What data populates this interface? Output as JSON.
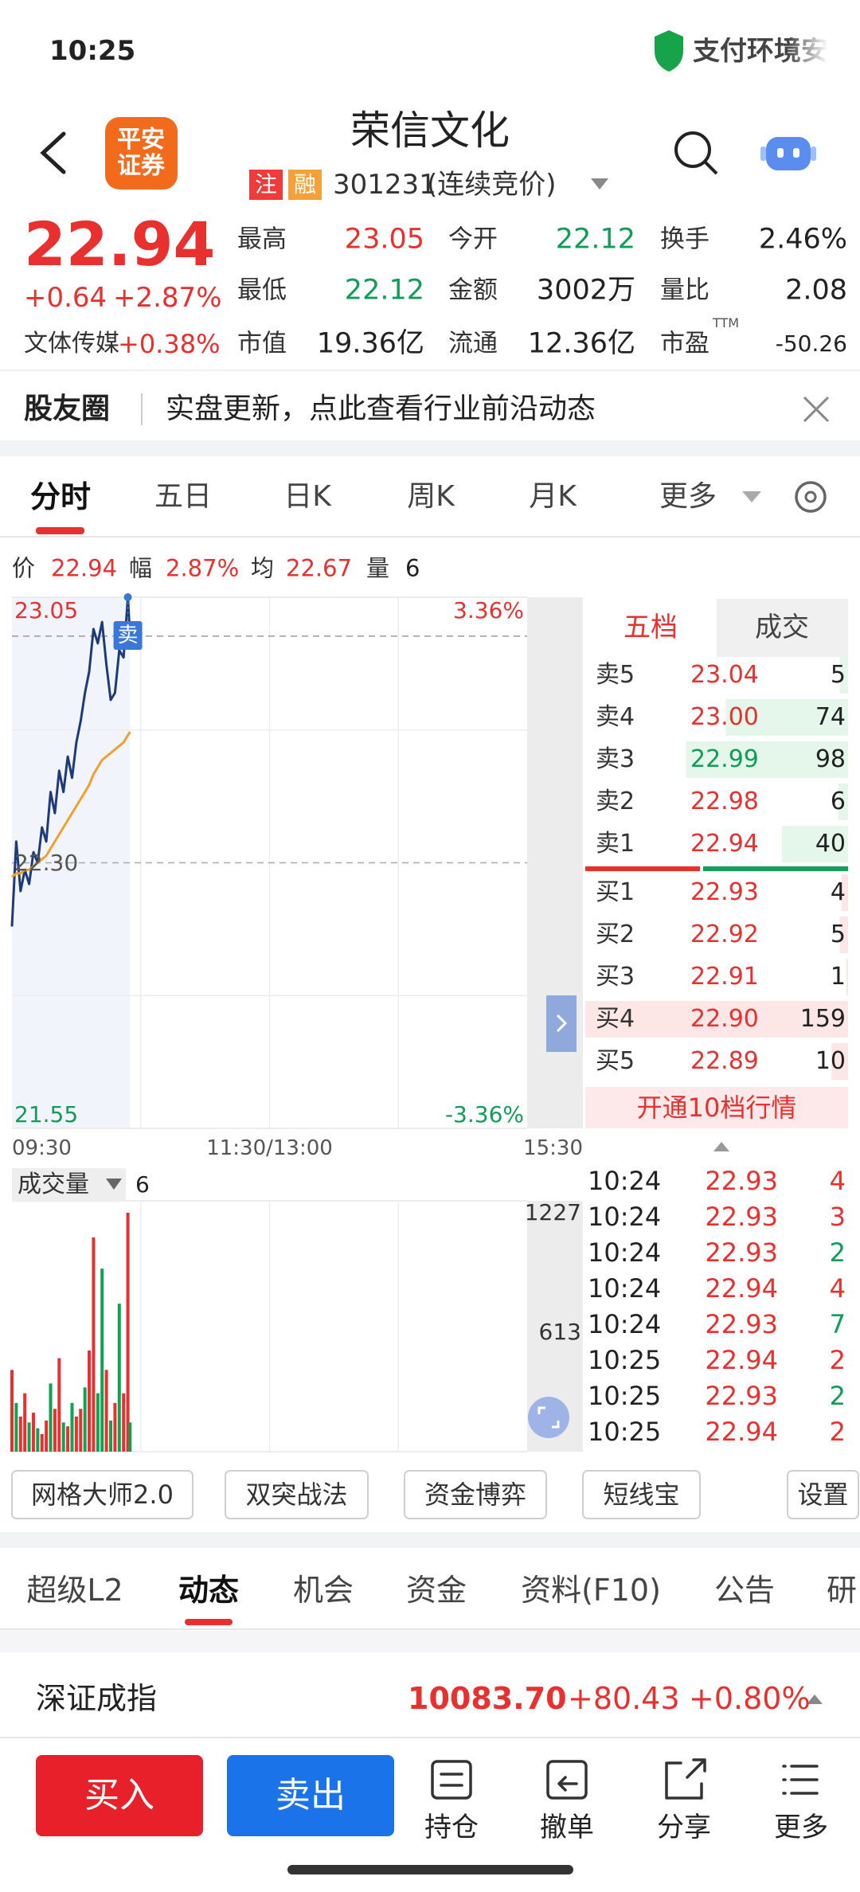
{
  "status_bar": {
    "time": "10:25",
    "notice": "支付环境安"
  },
  "header": {
    "logo": "平安证券",
    "title": "荣信文化",
    "badges": [
      "注",
      "融"
    ],
    "code": "301231",
    "status": "(连续竞价)"
  },
  "quote": {
    "price": "22.94",
    "change": "+0.64",
    "change_pct": "+2.87%",
    "sector": "文体传媒",
    "sector_change": "+0.38%",
    "stats": [
      {
        "label": "最高",
        "value": "23.05",
        "color": "#e8312f"
      },
      {
        "label": "今开",
        "value": "22.12",
        "color": "#0f9d58"
      },
      {
        "label": "换手",
        "value": "2.46%",
        "color": "#222222"
      },
      {
        "label": "最低",
        "value": "22.12",
        "color": "#0f9d58"
      },
      {
        "label": "金额",
        "value": "3002万",
        "color": "#222222"
      },
      {
        "label": "量比",
        "value": "2.08",
        "color": "#222222"
      },
      {
        "label": "市值",
        "value": "19.36亿",
        "color": "#222222"
      },
      {
        "label": "流通",
        "value": "12.36亿",
        "color": "#222222"
      },
      {
        "label": "市盈",
        "label_sup": "TTM",
        "value": "-50.26",
        "color": "#222222"
      }
    ]
  },
  "banner": {
    "title": "股友圈",
    "text": "实盘更新，点此查看行业前沿动态"
  },
  "chart_tabs": [
    "分时",
    "五日",
    "日K",
    "周K",
    "月K",
    "更多"
  ],
  "info": [
    {
      "label": "价",
      "value": "22.94",
      "color": "#e8312f"
    },
    {
      "label": "幅",
      "value": "2.87%",
      "color": "#e8312f"
    },
    {
      "label": "均",
      "value": "22.67",
      "color": "#e8312f"
    },
    {
      "label": "量",
      "value": "6",
      "color": "#222222"
    }
  ],
  "chart_data": [
    {
      "type": "line",
      "x": [
        0,
        2,
        4,
        6,
        8,
        10,
        12,
        14,
        16,
        18,
        20,
        22,
        24,
        26,
        28,
        30,
        32,
        34,
        36,
        38,
        40,
        42,
        44,
        46,
        48,
        50,
        52,
        54,
        55
      ],
      "series": [
        {
          "name": "价",
          "color": "#1f3a7a",
          "values": [
            22.12,
            22.36,
            22.22,
            22.28,
            22.24,
            22.33,
            22.3,
            22.4,
            22.36,
            22.5,
            22.44,
            22.56,
            22.5,
            22.6,
            22.54,
            22.64,
            22.7,
            22.78,
            22.84,
            22.96,
            22.92,
            22.98,
            22.86,
            22.76,
            22.78,
            22.9,
            22.88,
            23.05,
            22.94
          ]
        },
        {
          "name": "均",
          "color": "#f0a030",
          "values": [
            22.26,
            22.27,
            22.27,
            22.28,
            22.28,
            22.29,
            22.3,
            22.31,
            22.32,
            22.34,
            22.36,
            22.38,
            22.4,
            22.42,
            22.44,
            22.46,
            22.48,
            22.5,
            22.52,
            22.55,
            22.57,
            22.59,
            22.6,
            22.61,
            22.62,
            22.63,
            22.64,
            22.66,
            22.67
          ]
        }
      ],
      "xlim": [
        0,
        240
      ],
      "xticks": [
        {
          "value": 0,
          "label": "09:30"
        },
        {
          "value": 120,
          "label": "11:30/13:00"
        },
        {
          "value": 240,
          "label": "15:30"
        }
      ],
      "ylim": [
        21.55,
        23.05
      ],
      "yticks": [
        21.55,
        {
          "value": 22.3,
          "label": "22.30"
        },
        23.05
      ],
      "y2lim": [
        -3.36,
        3.36
      ],
      "y2ticks": [
        {
          "value": -3.36,
          "label": "-3.36%"
        },
        {
          "value": 3.36,
          "label": "3.36%"
        }
      ],
      "reference_line": 22.94,
      "annotations": [
        {
          "label": "卖",
          "x": 54,
          "y": 23.05
        }
      ]
    },
    {
      "type": "bar",
      "title": "成交量",
      "current": "6",
      "x": [
        0,
        2,
        4,
        6,
        8,
        10,
        12,
        14,
        16,
        18,
        20,
        22,
        24,
        26,
        28,
        30,
        32,
        34,
        36,
        38,
        40,
        42,
        44,
        46,
        48,
        50,
        52,
        54,
        55
      ],
      "values": [
        420,
        250,
        180,
        300,
        150,
        200,
        120,
        90,
        160,
        350,
        220,
        480,
        150,
        130,
        250,
        180,
        220,
        330,
        520,
        1100,
        300,
        940,
        420,
        160,
        250,
        760,
        300,
        1227,
        150
      ],
      "colors": [
        "#e8312f",
        "#12a150",
        "#e8312f",
        "#e8312f",
        "#12a150",
        "#e8312f",
        "#12a150",
        "#e8312f",
        "#e8312f",
        "#12a150",
        "#e8312f",
        "#e8312f",
        "#12a150",
        "#e8312f",
        "#12a150",
        "#e8312f",
        "#e8312f",
        "#12a150",
        "#e8312f",
        "#e8312f",
        "#12a150",
        "#12a150",
        "#e8312f",
        "#12a150",
        "#e8312f",
        "#12a150",
        "#e8312f",
        "#e8312f",
        "#12a150"
      ],
      "xlim": [
        0,
        240
      ],
      "ylim": [
        0,
        1227
      ],
      "yticks": [
        613,
        1227
      ]
    }
  ],
  "order_book": {
    "tabs": [
      "五档",
      "成交"
    ],
    "asks": [
      {
        "label": "卖5",
        "price": "23.04",
        "volume": 5,
        "color": "#e8312f"
      },
      {
        "label": "卖4",
        "price": "23.00",
        "volume": 74,
        "color": "#e8312f"
      },
      {
        "label": "卖3",
        "price": "22.99",
        "volume": 98,
        "color": "#0f9d58"
      },
      {
        "label": "卖2",
        "price": "22.98",
        "volume": 6,
        "color": "#e8312f"
      },
      {
        "label": "卖1",
        "price": "22.94",
        "volume": 40,
        "color": "#e8312f"
      }
    ],
    "bids": [
      {
        "label": "买1",
        "price": "22.93",
        "volume": 4,
        "color": "#e8312f"
      },
      {
        "label": "买2",
        "price": "22.92",
        "volume": 5,
        "color": "#e8312f"
      },
      {
        "label": "买3",
        "price": "22.91",
        "volume": 1,
        "color": "#e8312f"
      },
      {
        "label": "买4",
        "price": "22.90",
        "volume": 159,
        "color": "#e8312f"
      },
      {
        "label": "买5",
        "price": "22.89",
        "volume": 10,
        "color": "#e8312f"
      }
    ],
    "upgrade": "开通10档行情"
  },
  "trades": [
    {
      "time": "10:24",
      "price": "22.93",
      "volume": "4",
      "color": "#e8312f"
    },
    {
      "time": "10:24",
      "price": "22.93",
      "volume": "3",
      "color": "#e8312f"
    },
    {
      "time": "10:24",
      "price": "22.93",
      "volume": "2",
      "color": "#0f9d58"
    },
    {
      "time": "10:24",
      "price": "22.94",
      "volume": "4",
      "color": "#e8312f"
    },
    {
      "time": "10:24",
      "price": "22.93",
      "volume": "7",
      "color": "#0f9d58"
    },
    {
      "time": "10:25",
      "price": "22.94",
      "volume": "2",
      "color": "#e8312f"
    },
    {
      "time": "10:25",
      "price": "22.93",
      "volume": "2",
      "color": "#0f9d58"
    },
    {
      "time": "10:25",
      "price": "22.94",
      "volume": "2",
      "color": "#e8312f"
    }
  ],
  "tools": [
    "网格大师2.0",
    "双突战法",
    "资金博弈",
    "短线宝",
    "设置"
  ],
  "info_tabs": [
    "超级L2",
    "动态",
    "机会",
    "资金",
    "资料(F10)",
    "公告",
    "研"
  ],
  "index": {
    "name": "深证成指",
    "value": "10083.70",
    "change": "+80.43",
    "change_pct": "+0.80%"
  },
  "actions": {
    "buy": "买入",
    "sell": "卖出",
    "icons": [
      "持仓",
      "撤单",
      "分享",
      "更多"
    ]
  }
}
